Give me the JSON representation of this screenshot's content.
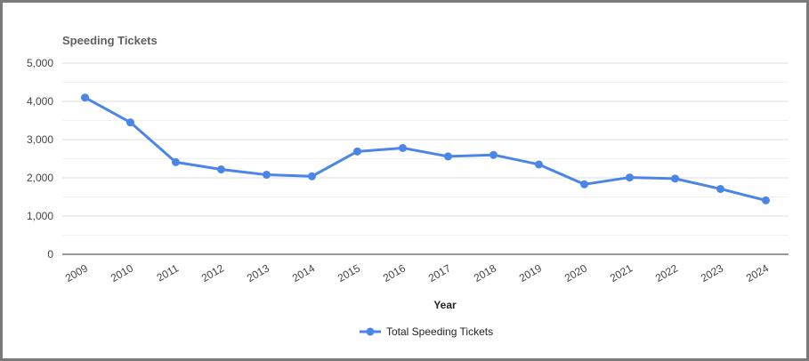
{
  "chart_data": {
    "type": "line",
    "title": "Speeding Tickets",
    "xlabel": "Year",
    "ylabel": "",
    "ylim": [
      0,
      5000
    ],
    "yticks": [
      "0",
      "1,000",
      "2,000",
      "3,000",
      "4,000",
      "5,000"
    ],
    "ytick_values": [
      0,
      1000,
      2000,
      3000,
      4000,
      5000
    ],
    "categories": [
      "2009",
      "2010",
      "2011",
      "2012",
      "2013",
      "2014",
      "2015",
      "2016",
      "2017",
      "2018",
      "2019",
      "2020",
      "2021",
      "2022",
      "2023",
      "2024"
    ],
    "series": [
      {
        "name": "Total Speeding Tickets",
        "color": "#4a86e8",
        "values": [
          4100,
          3450,
          2410,
          2220,
          2080,
          2040,
          2690,
          2780,
          2560,
          2600,
          2350,
          1830,
          2010,
          1980,
          1710,
          1410
        ]
      }
    ],
    "grid": true,
    "legend_position": "bottom"
  }
}
